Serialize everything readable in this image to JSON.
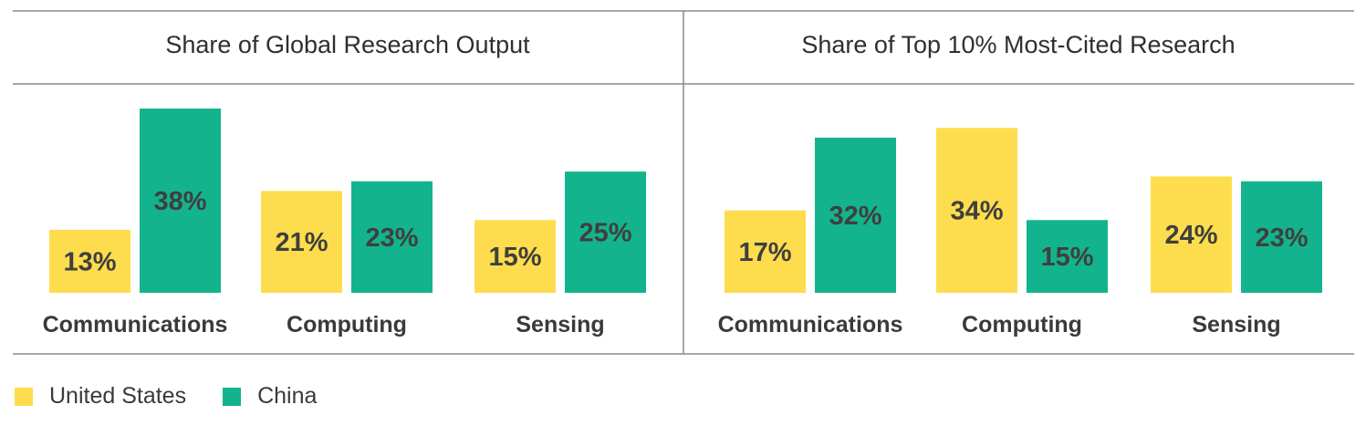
{
  "colors": {
    "United States": "#fddd4d",
    "China": "#13b48d"
  },
  "chart_data": [
    {
      "type": "bar",
      "title": "Share of Global Research Output",
      "categories": [
        "Communications",
        "Computing",
        "Sensing"
      ],
      "series": [
        {
          "name": "United States",
          "values": [
            13,
            21,
            15
          ]
        },
        {
          "name": "China",
          "values": [
            38,
            23,
            25
          ]
        }
      ],
      "value_suffix": "%",
      "ylim": [
        0,
        38
      ],
      "xlabel": "",
      "ylabel": "",
      "grid": false
    },
    {
      "type": "bar",
      "title": "Share of Top 10% Most-Cited Research",
      "categories": [
        "Communications",
        "Computing",
        "Sensing"
      ],
      "series": [
        {
          "name": "United States",
          "values": [
            17,
            34,
            24
          ]
        },
        {
          "name": "China",
          "values": [
            32,
            15,
            23
          ]
        }
      ],
      "value_suffix": "%",
      "ylim": [
        0,
        38
      ],
      "xlabel": "",
      "ylabel": "",
      "grid": false
    }
  ],
  "legend": {
    "position": "bottom-left",
    "items": [
      "United States",
      "China"
    ]
  }
}
